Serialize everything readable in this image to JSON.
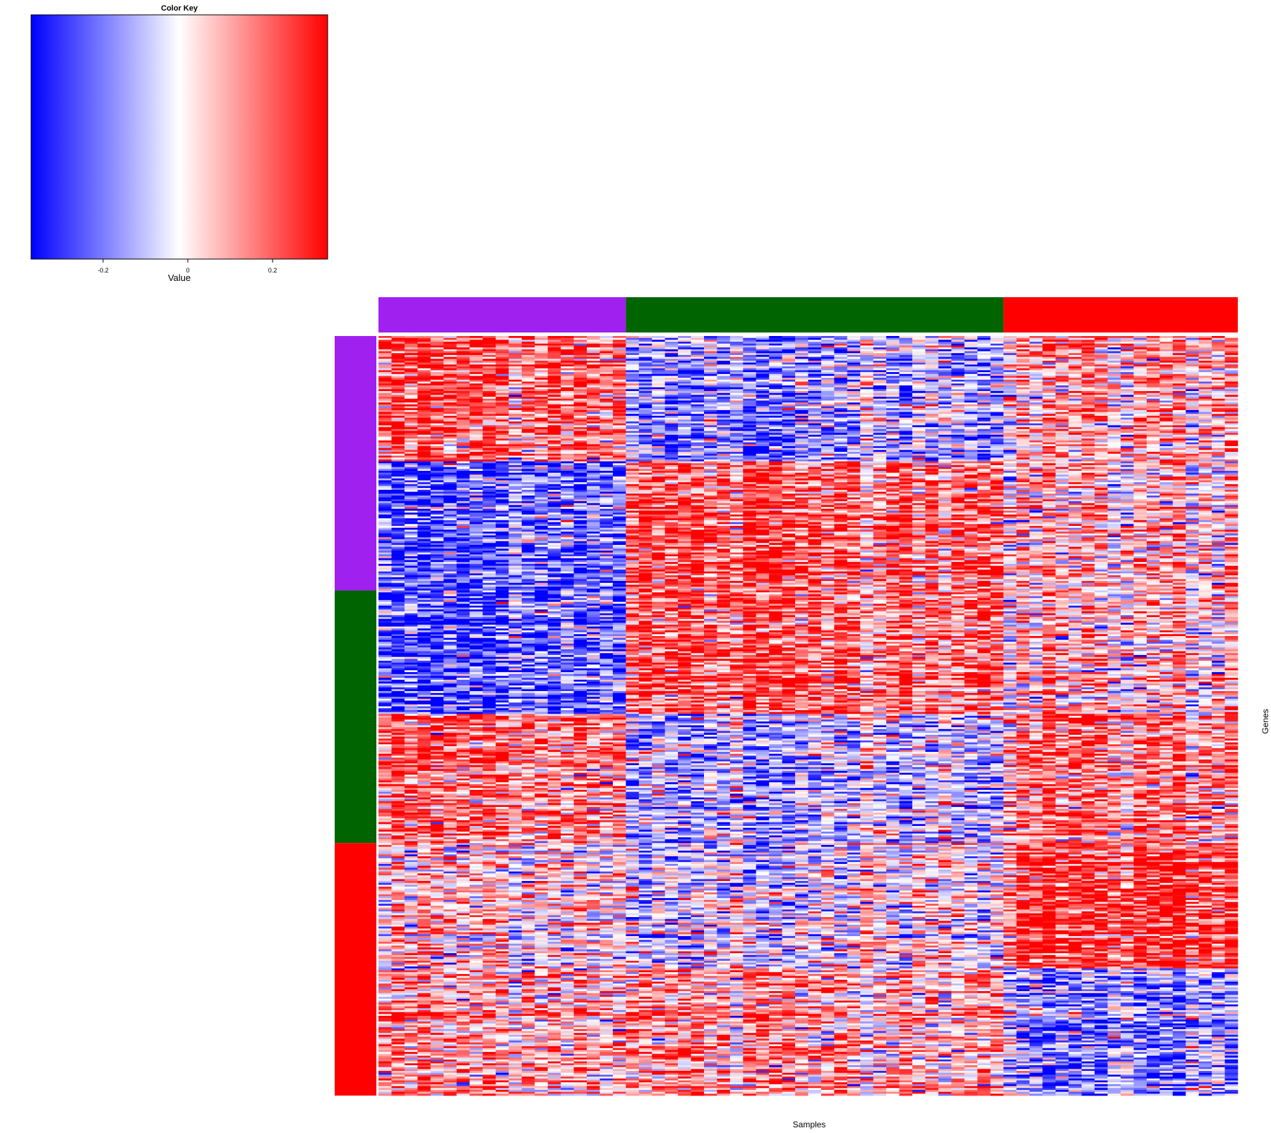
{
  "chart_data": {
    "type": "heatmap",
    "xlabel": "Samples",
    "ylabel": "Genes",
    "color_key": {
      "title": "Color Key",
      "xlabel": "Value",
      "range": [
        -0.37,
        0.33
      ],
      "ticks": [
        -0.2,
        0,
        0.2
      ],
      "tick_labels": [
        "-0.2",
        "0",
        "0.2"
      ],
      "colors": [
        "#0000FF",
        "#FFFFFF",
        "#FF0000"
      ]
    },
    "sample_groups": [
      {
        "color": "#A020F0",
        "n_samples": 19
      },
      {
        "color": "#006400",
        "n_samples": 29
      },
      {
        "color": "#FF0000",
        "n_samples": 18
      }
    ],
    "gene_groups": [
      {
        "color": "#A020F0",
        "n_genes": 134
      },
      {
        "color": "#006400",
        "n_genes": 133
      },
      {
        "color": "#FF0000",
        "n_genes": 133
      }
    ],
    "gene_clusters": [
      {
        "n_genes": 66,
        "mean_by_sample_group": [
          0.22,
          -0.15,
          0.08
        ]
      },
      {
        "n_genes": 133,
        "mean_by_sample_group": [
          -0.25,
          0.2,
          0.05
        ]
      },
      {
        "n_genes": 68,
        "mean_by_sample_group": [
          0.18,
          -0.12,
          0.14
        ]
      },
      {
        "n_genes": 66,
        "mean_by_sample_group": [
          0.03,
          -0.05,
          0.25
        ]
      },
      {
        "n_genes": 67,
        "mean_by_sample_group": [
          0.1,
          0.1,
          -0.17
        ]
      }
    ]
  }
}
